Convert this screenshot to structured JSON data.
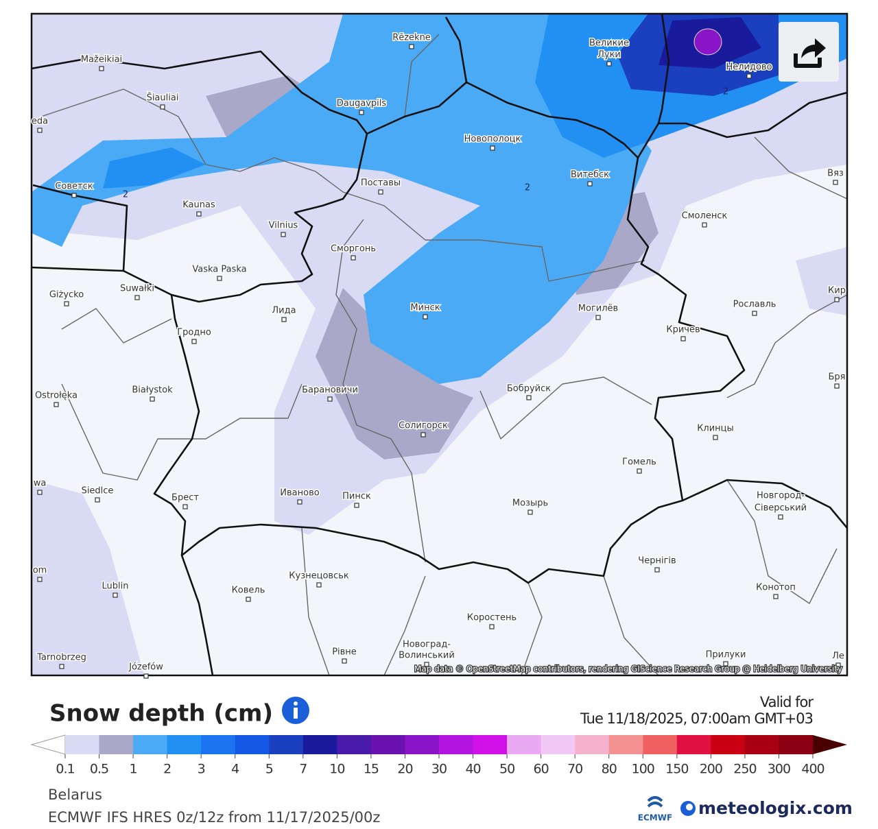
{
  "map": {
    "labels": [
      "Mažeikiai",
      "Šiauliai",
      "Rēzekne",
      "Daugavpils",
      "Великие",
      "Луки",
      "Нелидово",
      "Новополоцк",
      "Витебск",
      "Вяз",
      "Советск",
      "Kaunas",
      "Поставы",
      "Смоленск",
      "Vilnius",
      "Сморгонь",
      "Vaska Paska",
      "Suwałki",
      "Giżycko",
      "Минск",
      "Могилёв",
      "Рославль",
      "Кир",
      "Лида",
      "Кричев",
      "Гродно",
      "Białystok",
      "Ostrołęka",
      "Барановичи",
      "Бобруйск",
      "Бря",
      "Солигорск",
      "Клинцы",
      "Гомель",
      "wa",
      "Siedlce",
      "Брест",
      "Иваново",
      "Пинск",
      "Мозырь",
      "Новгород-",
      "Сіверський",
      "Чернігів",
      "Кузнецовськ",
      "Ковель",
      "Lublin",
      "Конотоп",
      "om",
      "Коростень",
      "Новоград-",
      "Волинський",
      "Рівне",
      "Прилуки",
      "Tarnobrzeg",
      "Józefów",
      "Ле",
      "eda"
    ],
    "contour_labels": [
      2,
      2,
      2
    ],
    "attribution": "Map data © OpenStreetMap contributors, rendering GIScience Research Group @ Heidelberg University"
  },
  "legend": {
    "title": "Snow depth (cm)",
    "valid_label": "Valid for",
    "valid_time": "Tue 11/18/2025, 07:00am GMT+03",
    "ticks": [
      0.1,
      0.5,
      1,
      2,
      3,
      4,
      5,
      7,
      10,
      15,
      20,
      30,
      40,
      50,
      60,
      70,
      80,
      100,
      150,
      200,
      250,
      300,
      400
    ],
    "colors": [
      "#d9dbf5",
      "#a9a8c9",
      "#4aaaf5",
      "#2190f2",
      "#1a74f0",
      "#1558e6",
      "#1a3fbf",
      "#1a1a9c",
      "#4a1aaa",
      "#6a12b0",
      "#8a14c8",
      "#b414e0",
      "#d010e8",
      "#e8a8f2",
      "#f2c8f6",
      "#f5b2cc",
      "#f49292",
      "#f06262",
      "#e01040",
      "#c80012",
      "#a80012",
      "#8a0012"
    ],
    "below_color": "#ffffff",
    "above_color": "#4a0000"
  },
  "footer": {
    "region": "Belarus",
    "model": "ECMWF IFS HRES 0z/12z from 11/17/2025/00z",
    "ecmwf": "ECMWF",
    "brand": "meteologix.com"
  }
}
